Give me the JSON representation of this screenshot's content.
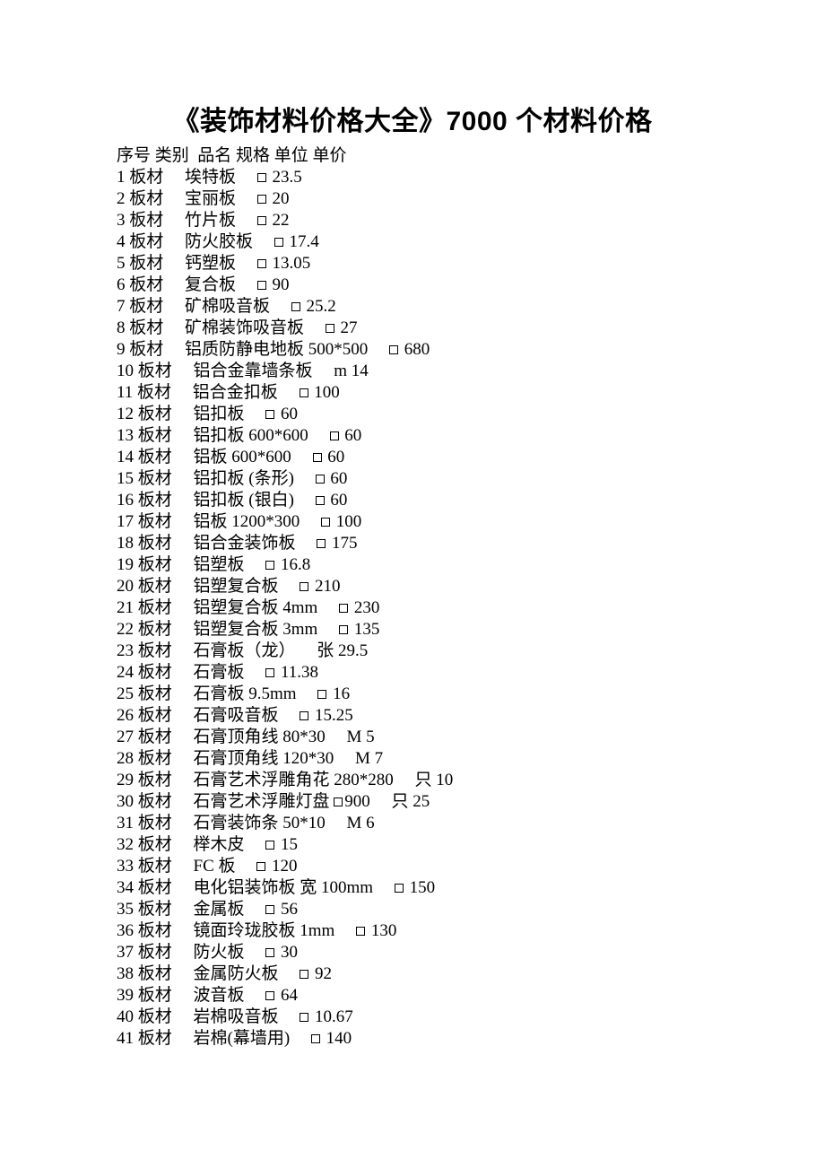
{
  "title": "《装饰材料价格大全》7000 个材料价格",
  "header": "序号 类别  品名 规格 单位 单价",
  "rows": [
    {
      "n": "1",
      "cat": "板材",
      "name": "埃特板",
      "spec": "",
      "unit": "□",
      "price": "23.5"
    },
    {
      "n": "2",
      "cat": "板材",
      "name": "宝丽板",
      "spec": "",
      "unit": "□",
      "price": "20"
    },
    {
      "n": "3",
      "cat": "板材",
      "name": "竹片板",
      "spec": "",
      "unit": "□",
      "price": "22"
    },
    {
      "n": "4",
      "cat": "板材",
      "name": "防火胶板",
      "spec": "",
      "unit": "□",
      "price": "17.4"
    },
    {
      "n": "5",
      "cat": "板材",
      "name": "钙塑板",
      "spec": "",
      "unit": "□",
      "price": "13.05"
    },
    {
      "n": "6",
      "cat": "板材",
      "name": "复合板",
      "spec": "",
      "unit": "□",
      "price": "90"
    },
    {
      "n": "7",
      "cat": "板材",
      "name": "矿棉吸音板",
      "spec": "",
      "unit": "□",
      "price": "25.2"
    },
    {
      "n": "8",
      "cat": "板材",
      "name": "矿棉装饰吸音板",
      "spec": "",
      "unit": "□",
      "price": "27"
    },
    {
      "n": "9",
      "cat": "板材",
      "name": "铝质防静电地板",
      "spec": "500*500",
      "unit": "□",
      "price": "680"
    },
    {
      "n": "10",
      "cat": "板材",
      "name": "铝合金靠墙条板",
      "spec": "",
      "unit": "m",
      "price": "14"
    },
    {
      "n": "11",
      "cat": "板材",
      "name": "铝合金扣板",
      "spec": "",
      "unit": "□",
      "price": "100"
    },
    {
      "n": "12",
      "cat": "板材",
      "name": "铝扣板",
      "spec": "",
      "unit": "□",
      "price": "60"
    },
    {
      "n": "13",
      "cat": "板材",
      "name": "铝扣板",
      "spec": "600*600",
      "unit": "□",
      "price": "60"
    },
    {
      "n": "14",
      "cat": "板材",
      "name": "铝板",
      "spec": "600*600",
      "unit": "□",
      "price": "60"
    },
    {
      "n": "15",
      "cat": "板材",
      "name": "铝扣板",
      "spec": "(条形)",
      "unit": "□",
      "price": "60"
    },
    {
      "n": "16",
      "cat": "板材",
      "name": "铝扣板",
      "spec": "(银白)",
      "unit": "□",
      "price": "60"
    },
    {
      "n": "17",
      "cat": "板材",
      "name": "铝板",
      "spec": "1200*300",
      "unit": "□",
      "price": "100"
    },
    {
      "n": "18",
      "cat": "板材",
      "name": "铝合金装饰板",
      "spec": "",
      "unit": "□",
      "price": "175"
    },
    {
      "n": "19",
      "cat": "板材",
      "name": "铝塑板",
      "spec": "",
      "unit": "□",
      "price": "16.8"
    },
    {
      "n": "20",
      "cat": "板材",
      "name": "铝塑复合板",
      "spec": "",
      "unit": "□",
      "price": "210"
    },
    {
      "n": "21",
      "cat": "板材",
      "name": "铝塑复合板",
      "spec": "4mm",
      "unit": "□",
      "price": "230"
    },
    {
      "n": "22",
      "cat": "板材",
      "name": "铝塑复合板",
      "spec": "3mm",
      "unit": "□",
      "price": "135"
    },
    {
      "n": "23",
      "cat": "板材",
      "name": "石膏板（龙）",
      "spec": "",
      "unit": "张",
      "price": "29.5"
    },
    {
      "n": "24",
      "cat": "板材",
      "name": "石膏板",
      "spec": "",
      "unit": "□",
      "price": "11.38"
    },
    {
      "n": "25",
      "cat": "板材",
      "name": "石膏板",
      "spec": "9.5mm",
      "unit": "□",
      "price": "16"
    },
    {
      "n": "26",
      "cat": "板材",
      "name": "石膏吸音板",
      "spec": "",
      "unit": "□",
      "price": "15.25"
    },
    {
      "n": "27",
      "cat": "板材",
      "name": "石膏顶角线",
      "spec": "80*30",
      "unit": "M",
      "price": "5"
    },
    {
      "n": "28",
      "cat": "板材",
      "name": "石膏顶角线",
      "spec": "120*30",
      "unit": "M",
      "price": "7"
    },
    {
      "n": "29",
      "cat": "板材",
      "name": "石膏艺术浮雕角花",
      "spec": "280*280",
      "unit": "只",
      "price": "10"
    },
    {
      "n": "30",
      "cat": "板材",
      "name": "石膏艺术浮雕灯盘",
      "spec": "□900",
      "unit": "只",
      "price": "25"
    },
    {
      "n": "31",
      "cat": "板材",
      "name": "石膏装饰条",
      "spec": "50*10",
      "unit": "M",
      "price": "6"
    },
    {
      "n": "32",
      "cat": "板材",
      "name": "榉木皮",
      "spec": "",
      "unit": "□",
      "price": "15"
    },
    {
      "n": "33",
      "cat": "板材",
      "name": "FC 板",
      "spec": "",
      "unit": "□",
      "price": "120"
    },
    {
      "n": "34",
      "cat": "板材",
      "name": "电化铝装饰板",
      "spec": "宽 100mm",
      "unit": "□",
      "price": "150"
    },
    {
      "n": "35",
      "cat": "板材",
      "name": "金属板",
      "spec": "",
      "unit": "□",
      "price": "56"
    },
    {
      "n": "36",
      "cat": "板材",
      "name": "镜面玲珑胶板",
      "spec": "1mm",
      "unit": "□",
      "price": "130"
    },
    {
      "n": "37",
      "cat": "板材",
      "name": "防火板",
      "spec": "",
      "unit": "□",
      "price": "30"
    },
    {
      "n": "38",
      "cat": "板材",
      "name": "金属防火板",
      "spec": "",
      "unit": "□",
      "price": "92"
    },
    {
      "n": "39",
      "cat": "板材",
      "name": "波音板",
      "spec": "",
      "unit": "□",
      "price": "64"
    },
    {
      "n": "40",
      "cat": "板材",
      "name": "岩棉吸音板",
      "spec": "",
      "unit": "□",
      "price": "10.67"
    },
    {
      "n": "41",
      "cat": "板材",
      "name": "岩棉(幕墙用)",
      "spec": "",
      "unit": "□",
      "price": "140"
    }
  ]
}
